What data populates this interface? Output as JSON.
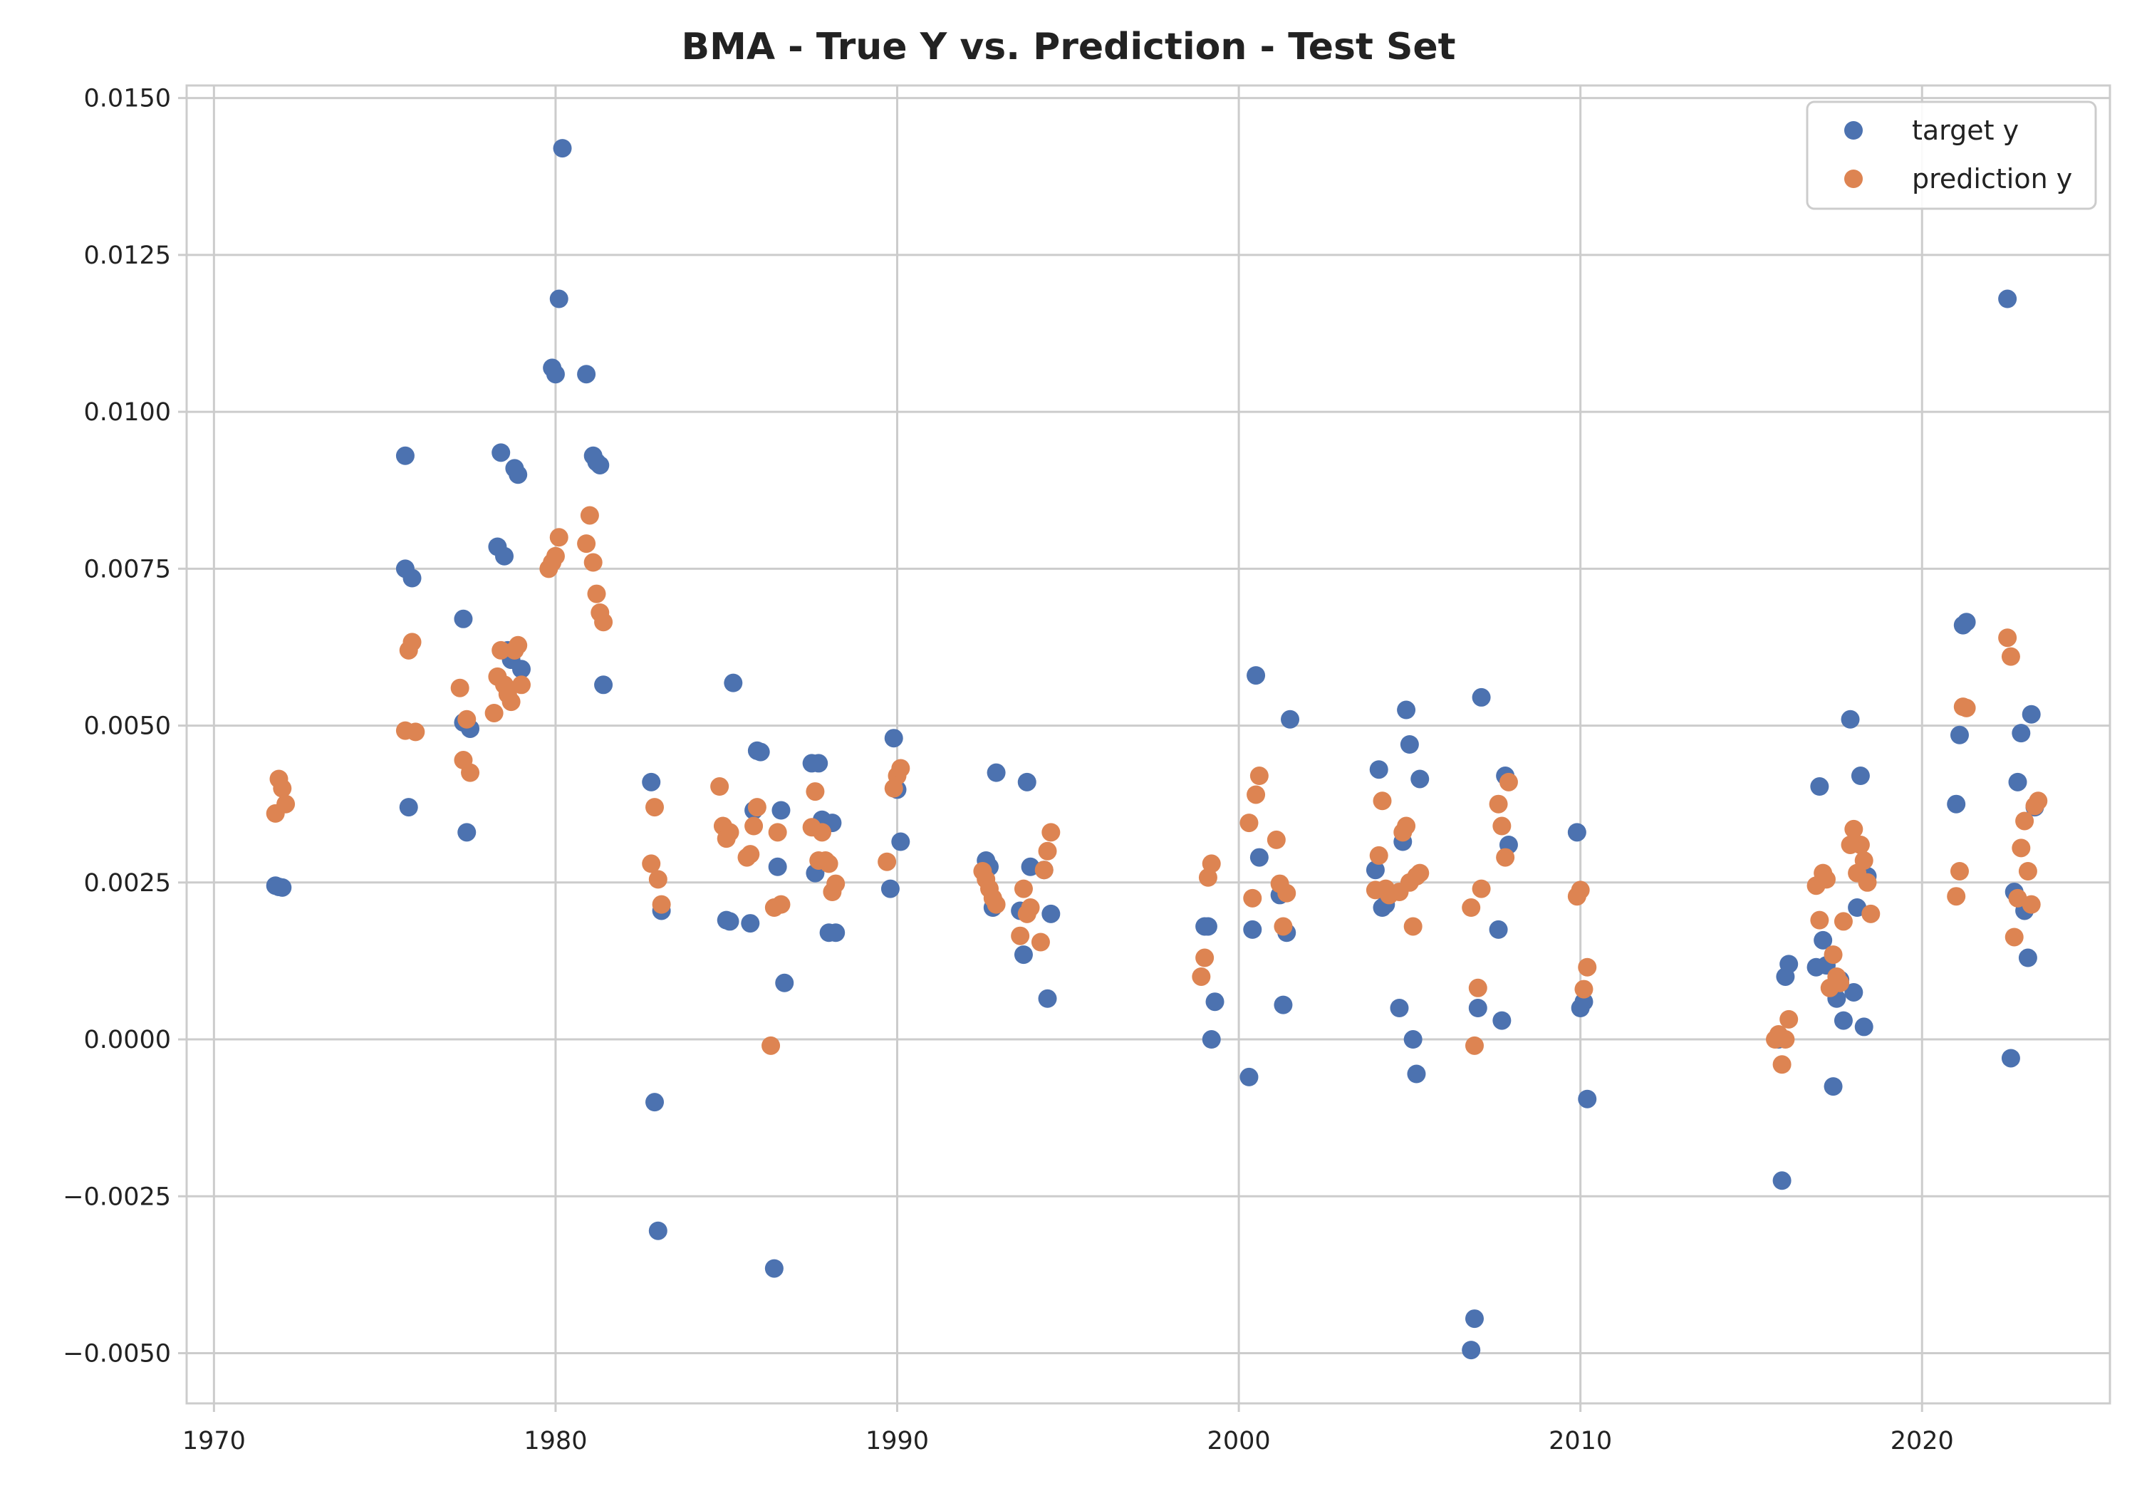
{
  "chart_data": {
    "type": "scatter",
    "title": "BMA - True Y vs. Prediction - Test Set",
    "xlabel": "",
    "ylabel": "",
    "xlim": [
      1969.2,
      2025.5
    ],
    "ylim": [
      -0.0058,
      0.0152
    ],
    "xticks": [
      1970,
      1980,
      1990,
      2000,
      2010,
      2020
    ],
    "xtick_labels": [
      "1970",
      "1980",
      "1990",
      "2000",
      "2010",
      "2020"
    ],
    "yticks": [
      -0.005,
      -0.0025,
      0,
      0.0025,
      0.005,
      0.0075,
      0.01,
      0.0125,
      0.015
    ],
    "ytick_labels": [
      "−0.0050",
      "−0.0025",
      "0.0000",
      "0.0025",
      "0.0050",
      "0.0075",
      "0.0100",
      "0.0125",
      "0.0150"
    ],
    "grid": true,
    "legend_position": "top-right",
    "series": [
      {
        "name": "target y",
        "color": "#4c72b0",
        "points": [
          [
            1971.8,
            0.00245
          ],
          [
            1971.9,
            0.00243
          ],
          [
            1972.0,
            0.00242
          ],
          [
            1975.6,
            0.0093
          ],
          [
            1975.6,
            0.0075
          ],
          [
            1975.7,
            0.0037
          ],
          [
            1975.8,
            0.00735
          ],
          [
            1977.3,
            0.0067
          ],
          [
            1977.3,
            0.00505
          ],
          [
            1977.4,
            0.0033
          ],
          [
            1977.5,
            0.00495
          ],
          [
            1978.3,
            0.00785
          ],
          [
            1978.4,
            0.00935
          ],
          [
            1978.5,
            0.0077
          ],
          [
            1978.6,
            0.0062
          ],
          [
            1978.7,
            0.00605
          ],
          [
            1978.8,
            0.0091
          ],
          [
            1978.9,
            0.009
          ],
          [
            1979.0,
            0.0059
          ],
          [
            1979.9,
            0.0107
          ],
          [
            1980.0,
            0.0106
          ],
          [
            1980.1,
            0.0118
          ],
          [
            1980.2,
            0.0142
          ],
          [
            1980.9,
            0.0106
          ],
          [
            1981.1,
            0.0093
          ],
          [
            1981.2,
            0.0092
          ],
          [
            1981.3,
            0.00915
          ],
          [
            1981.4,
            0.00565
          ],
          [
            1982.8,
            0.0041
          ],
          [
            1982.9,
            -0.001
          ],
          [
            1983.0,
            -0.00305
          ],
          [
            1983.1,
            0.00205
          ],
          [
            1985.0,
            0.0019
          ],
          [
            1985.1,
            0.00188
          ],
          [
            1985.2,
            0.00568
          ],
          [
            1985.7,
            0.00185
          ],
          [
            1985.8,
            0.00365
          ],
          [
            1985.9,
            0.0046
          ],
          [
            1986.0,
            0.00458
          ],
          [
            1986.4,
            -0.00365
          ],
          [
            1986.5,
            0.00275
          ],
          [
            1986.6,
            0.00365
          ],
          [
            1986.7,
            0.0009
          ],
          [
            1987.5,
            0.0044
          ],
          [
            1987.6,
            0.00265
          ],
          [
            1987.7,
            0.0044
          ],
          [
            1987.8,
            0.0035
          ],
          [
            1988.0,
            0.0017
          ],
          [
            1988.1,
            0.00345
          ],
          [
            1988.2,
            0.0017
          ],
          [
            1989.8,
            0.0024
          ],
          [
            1989.9,
            0.0048
          ],
          [
            1990.0,
            0.00398
          ],
          [
            1990.1,
            0.00315
          ],
          [
            1992.6,
            0.00285
          ],
          [
            1992.7,
            0.00275
          ],
          [
            1992.8,
            0.0021
          ],
          [
            1992.9,
            0.00425
          ],
          [
            1993.6,
            0.00205
          ],
          [
            1993.7,
            0.00135
          ],
          [
            1993.8,
            0.0041
          ],
          [
            1993.9,
            0.00275
          ],
          [
            1994.3,
            0.0027
          ],
          [
            1994.4,
            0.00065
          ],
          [
            1994.5,
            0.002
          ],
          [
            1999.0,
            0.0018
          ],
          [
            1999.1,
            0.0018
          ],
          [
            1999.2,
            0.0
          ],
          [
            1999.3,
            0.0006
          ],
          [
            2000.3,
            -0.0006
          ],
          [
            2000.4,
            0.00175
          ],
          [
            2000.5,
            0.0058
          ],
          [
            2000.6,
            0.0029
          ],
          [
            2001.2,
            0.0023
          ],
          [
            2001.3,
            0.00055
          ],
          [
            2001.4,
            0.0017
          ],
          [
            2001.5,
            0.0051
          ],
          [
            2004.0,
            0.0027
          ],
          [
            2004.1,
            0.0043
          ],
          [
            2004.2,
            0.0021
          ],
          [
            2004.3,
            0.00215
          ],
          [
            2004.7,
            0.0005
          ],
          [
            2004.8,
            0.00315
          ],
          [
            2004.9,
            0.00525
          ],
          [
            2005.0,
            0.0047
          ],
          [
            2005.1,
            0.0
          ],
          [
            2005.2,
            -0.00055
          ],
          [
            2005.3,
            0.00415
          ],
          [
            2006.8,
            -0.00495
          ],
          [
            2006.9,
            -0.00445
          ],
          [
            2007.0,
            0.0005
          ],
          [
            2007.1,
            0.00545
          ],
          [
            2007.6,
            0.00175
          ],
          [
            2007.7,
            0.0003
          ],
          [
            2007.8,
            0.0042
          ],
          [
            2007.9,
            0.0031
          ],
          [
            2009.9,
            0.0033
          ],
          [
            2010.0,
            0.0005
          ],
          [
            2010.1,
            0.0006
          ],
          [
            2010.2,
            -0.00095
          ],
          [
            2015.8,
            0.0
          ],
          [
            2015.9,
            -0.00225
          ],
          [
            2016.0,
            0.001
          ],
          [
            2016.1,
            0.0012
          ],
          [
            2016.9,
            0.00115
          ],
          [
            2017.0,
            0.00403
          ],
          [
            2017.1,
            0.00158
          ],
          [
            2017.2,
            0.00118
          ],
          [
            2017.4,
            -0.00075
          ],
          [
            2017.5,
            0.00065
          ],
          [
            2017.6,
            0.00095
          ],
          [
            2017.7,
            0.0003
          ],
          [
            2017.9,
            0.0051
          ],
          [
            2018.0,
            0.00075
          ],
          [
            2018.1,
            0.0021
          ],
          [
            2018.2,
            0.0042
          ],
          [
            2018.3,
            0.0002
          ],
          [
            2018.4,
            0.0026
          ],
          [
            2021.0,
            0.00375
          ],
          [
            2021.1,
            0.00485
          ],
          [
            2021.2,
            0.0066
          ],
          [
            2021.3,
            0.00665
          ],
          [
            2022.5,
            0.0118
          ],
          [
            2022.6,
            -0.0003
          ],
          [
            2022.7,
            0.00235
          ],
          [
            2022.8,
            0.0041
          ],
          [
            2022.9,
            0.00488
          ],
          [
            2023.0,
            0.00205
          ],
          [
            2023.1,
            0.0013
          ],
          [
            2023.2,
            0.00518
          ],
          [
            2023.3,
            0.0037
          ]
        ]
      },
      {
        "name": "prediction y",
        "color": "#dd8452",
        "points": [
          [
            1971.8,
            0.0036
          ],
          [
            1971.9,
            0.00415
          ],
          [
            1972.0,
            0.004
          ],
          [
            1972.1,
            0.00375
          ],
          [
            1975.6,
            0.00492
          ],
          [
            1975.7,
            0.0062
          ],
          [
            1975.8,
            0.00633
          ],
          [
            1975.9,
            0.0049
          ],
          [
            1977.2,
            0.0056
          ],
          [
            1977.3,
            0.00445
          ],
          [
            1977.4,
            0.0051
          ],
          [
            1977.5,
            0.00425
          ],
          [
            1978.2,
            0.0052
          ],
          [
            1978.3,
            0.00578
          ],
          [
            1978.4,
            0.0062
          ],
          [
            1978.5,
            0.00565
          ],
          [
            1978.6,
            0.0055
          ],
          [
            1978.7,
            0.00538
          ],
          [
            1978.8,
            0.0062
          ],
          [
            1978.9,
            0.00628
          ],
          [
            1979.0,
            0.00565
          ],
          [
            1979.8,
            0.0075
          ],
          [
            1979.9,
            0.0076
          ],
          [
            1980.0,
            0.0077
          ],
          [
            1980.1,
            0.008
          ],
          [
            1980.9,
            0.0079
          ],
          [
            1981.0,
            0.00835
          ],
          [
            1981.1,
            0.0076
          ],
          [
            1981.2,
            0.0071
          ],
          [
            1981.3,
            0.0068
          ],
          [
            1981.4,
            0.00665
          ],
          [
            1982.8,
            0.0028
          ],
          [
            1982.9,
            0.0037
          ],
          [
            1983.0,
            0.00255
          ],
          [
            1983.1,
            0.00215
          ],
          [
            1984.8,
            0.00403
          ],
          [
            1984.9,
            0.0034
          ],
          [
            1985.0,
            0.0032
          ],
          [
            1985.1,
            0.0033
          ],
          [
            1985.6,
            0.0029
          ],
          [
            1985.7,
            0.00295
          ],
          [
            1985.8,
            0.0034
          ],
          [
            1985.9,
            0.0037
          ],
          [
            1986.3,
            -0.0001
          ],
          [
            1986.4,
            0.0021
          ],
          [
            1986.5,
            0.0033
          ],
          [
            1986.6,
            0.00215
          ],
          [
            1987.5,
            0.00338
          ],
          [
            1987.6,
            0.00395
          ],
          [
            1987.7,
            0.00285
          ],
          [
            1987.8,
            0.0033
          ],
          [
            1987.9,
            0.00285
          ],
          [
            1988.0,
            0.0028
          ],
          [
            1988.1,
            0.00235
          ],
          [
            1988.2,
            0.00248
          ],
          [
            1989.7,
            0.00283
          ],
          [
            1989.9,
            0.004
          ],
          [
            1990.0,
            0.0042
          ],
          [
            1990.1,
            0.00432
          ],
          [
            1992.5,
            0.00268
          ],
          [
            1992.6,
            0.00255
          ],
          [
            1992.7,
            0.0024
          ],
          [
            1992.8,
            0.00225
          ],
          [
            1992.9,
            0.00215
          ],
          [
            1993.6,
            0.00165
          ],
          [
            1993.7,
            0.0024
          ],
          [
            1993.8,
            0.002
          ],
          [
            1993.9,
            0.0021
          ],
          [
            1994.2,
            0.00155
          ],
          [
            1994.3,
            0.0027
          ],
          [
            1994.4,
            0.003
          ],
          [
            1994.5,
            0.0033
          ],
          [
            1998.9,
            0.001
          ],
          [
            1999.0,
            0.0013
          ],
          [
            1999.1,
            0.00258
          ],
          [
            1999.2,
            0.0028
          ],
          [
            2000.3,
            0.00345
          ],
          [
            2000.4,
            0.00225
          ],
          [
            2000.5,
            0.0039
          ],
          [
            2000.6,
            0.0042
          ],
          [
            2001.1,
            0.00318
          ],
          [
            2001.2,
            0.00248
          ],
          [
            2001.3,
            0.0018
          ],
          [
            2001.4,
            0.00233
          ],
          [
            2004.0,
            0.00238
          ],
          [
            2004.1,
            0.00293
          ],
          [
            2004.2,
            0.0038
          ],
          [
            2004.3,
            0.0024
          ],
          [
            2004.4,
            0.0023
          ],
          [
            2004.7,
            0.00235
          ],
          [
            2004.8,
            0.0033
          ],
          [
            2004.9,
            0.0034
          ],
          [
            2005.0,
            0.0025
          ],
          [
            2005.1,
            0.0018
          ],
          [
            2005.2,
            0.0026
          ],
          [
            2005.3,
            0.00265
          ],
          [
            2006.8,
            0.0021
          ],
          [
            2006.9,
            -0.0001
          ],
          [
            2007.0,
            0.00082
          ],
          [
            2007.1,
            0.0024
          ],
          [
            2007.6,
            0.00375
          ],
          [
            2007.7,
            0.0034
          ],
          [
            2007.8,
            0.0029
          ],
          [
            2007.9,
            0.0041
          ],
          [
            2009.9,
            0.00228
          ],
          [
            2010.0,
            0.00238
          ],
          [
            2010.1,
            0.0008
          ],
          [
            2010.2,
            0.00115
          ],
          [
            2015.7,
            0.0
          ],
          [
            2015.8,
            8e-05
          ],
          [
            2015.9,
            -0.0004
          ],
          [
            2016.0,
            0.0
          ],
          [
            2016.1,
            0.00032
          ],
          [
            2016.9,
            0.00245
          ],
          [
            2017.0,
            0.0019
          ],
          [
            2017.1,
            0.00265
          ],
          [
            2017.2,
            0.00255
          ],
          [
            2017.3,
            0.00082
          ],
          [
            2017.4,
            0.00135
          ],
          [
            2017.5,
            0.001
          ],
          [
            2017.6,
            0.0009
          ],
          [
            2017.7,
            0.00188
          ],
          [
            2017.9,
            0.0031
          ],
          [
            2018.0,
            0.00335
          ],
          [
            2018.1,
            0.00265
          ],
          [
            2018.2,
            0.0031
          ],
          [
            2018.3,
            0.00285
          ],
          [
            2018.4,
            0.0025
          ],
          [
            2018.5,
            0.002
          ],
          [
            2021.0,
            0.00228
          ],
          [
            2021.1,
            0.00268
          ],
          [
            2021.2,
            0.0053
          ],
          [
            2021.3,
            0.00528
          ],
          [
            2022.5,
            0.0064
          ],
          [
            2022.6,
            0.0061
          ],
          [
            2022.7,
            0.00163
          ],
          [
            2022.8,
            0.00225
          ],
          [
            2022.9,
            0.00305
          ],
          [
            2023.0,
            0.00348
          ],
          [
            2023.1,
            0.00268
          ],
          [
            2023.2,
            0.00215
          ],
          [
            2023.3,
            0.00372
          ],
          [
            2023.4,
            0.0038
          ]
        ]
      }
    ]
  }
}
